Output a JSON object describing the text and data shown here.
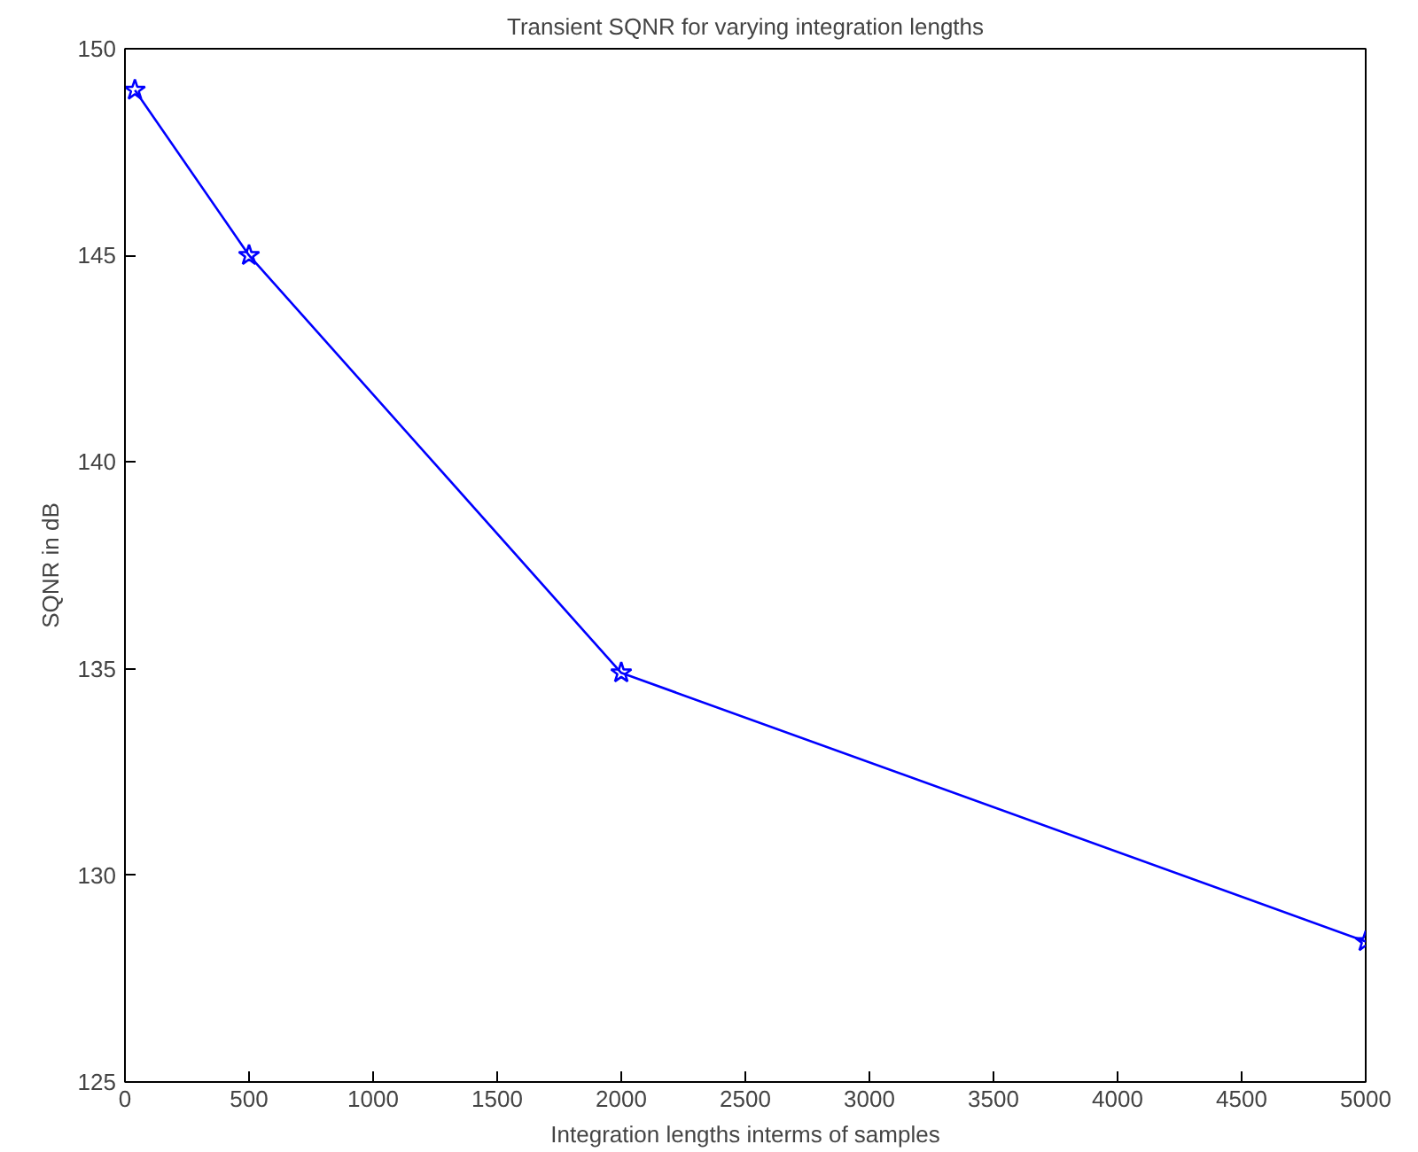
{
  "chart_data": {
    "type": "line",
    "title": "Transient SQNR for varying integration lengths",
    "xlabel": "Integration lengths interms of samples",
    "ylabel": "SQNR in dB",
    "x": [
      40,
      500,
      2000,
      5000
    ],
    "series": [
      {
        "color": "#0000ff",
        "values": [
          149,
          145,
          134.9,
          128.4
        ]
      }
    ],
    "xlim": [
      0,
      5000
    ],
    "xticks": [
      0,
      500,
      1000,
      1500,
      2000,
      2500,
      3000,
      3500,
      4000,
      4500,
      5000
    ],
    "ylim": [
      125,
      150
    ],
    "yticks": [
      125,
      130,
      135,
      140,
      145,
      150
    ],
    "grid": false,
    "marker": "star",
    "line_style": "solid"
  }
}
